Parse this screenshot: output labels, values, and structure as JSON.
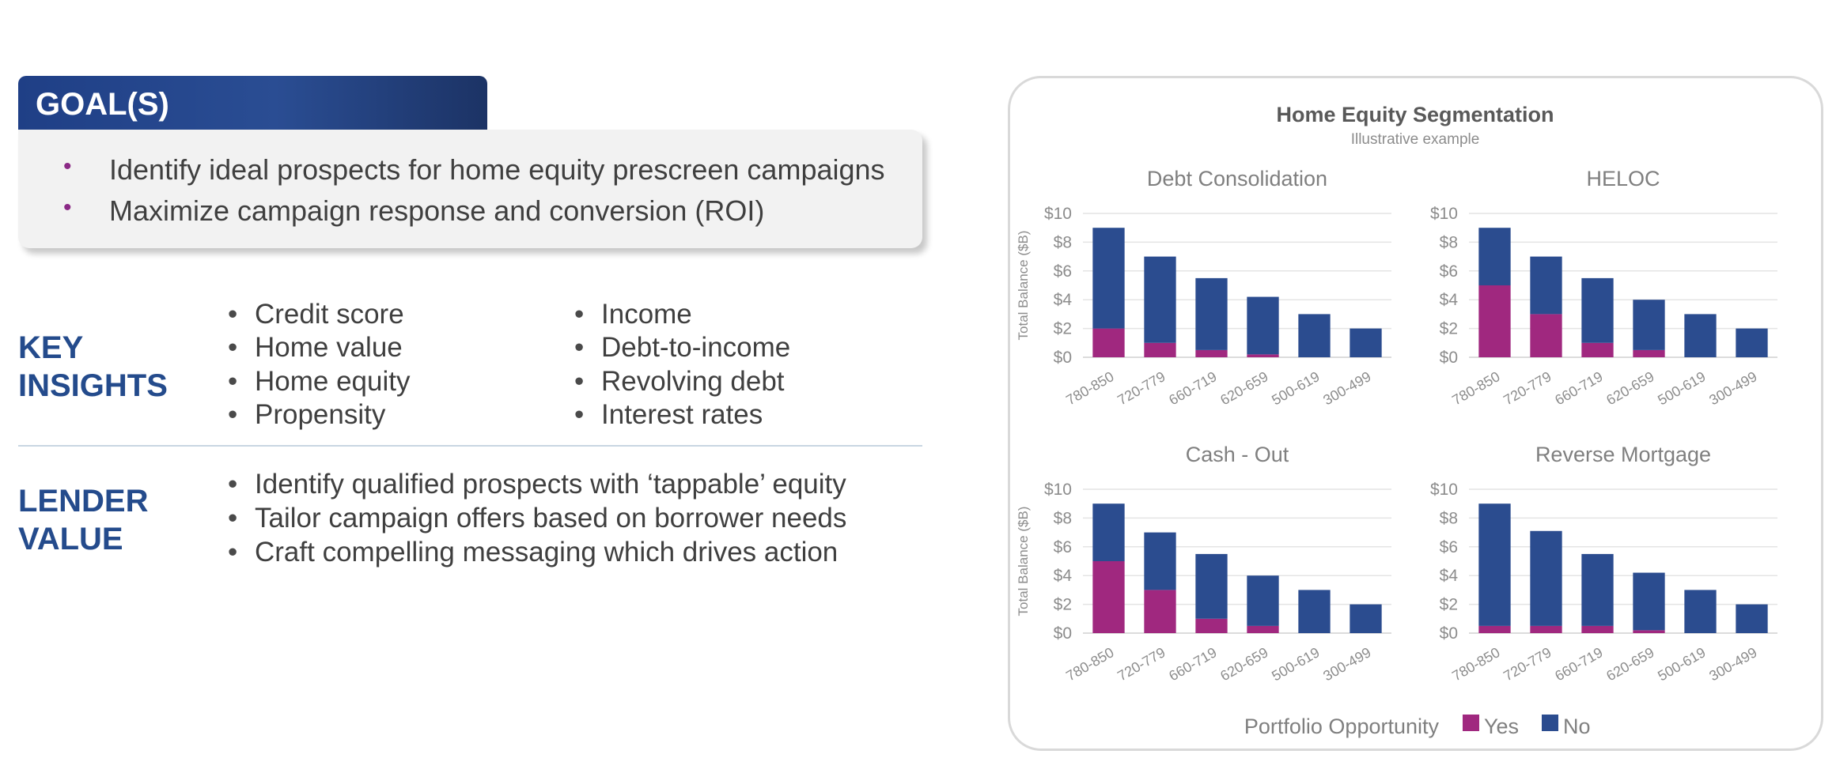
{
  "goals": {
    "header": "GOAL(S)",
    "items": [
      "Identify ideal prospects for home equity prescreen campaigns",
      "Maximize campaign response and conversion (ROI)"
    ]
  },
  "key_insights": {
    "title_line1": "KEY",
    "title_line2": "INSIGHTS",
    "col1": [
      "Credit score",
      "Home value",
      "Home equity",
      "Propensity"
    ],
    "col2": [
      "Income",
      "Debt-to-income",
      "Revolving debt",
      "Interest rates"
    ]
  },
  "lender_value": {
    "title_line1": "LENDER",
    "title_line2": "VALUE",
    "items": [
      "Identify qualified prospects with ‘tappable’ equity",
      "Tailor campaign offers based on borrower needs",
      "Craft compelling messaging which drives action"
    ]
  },
  "colors": {
    "yes": "#a0287f",
    "no": "#2b4c8f",
    "accent": "#244b8c",
    "bullet": "#8b2a86"
  },
  "chart_panel": {
    "title": "Home Equity Segmentation",
    "subtitle": "Illustrative example",
    "legend_title": "Portfolio Opportunity"
  },
  "chart_data": [
    {
      "type": "bar",
      "stacked": true,
      "title": "Debt Consolidation",
      "ylabel": "Total Balance ($B)",
      "ylim": [
        0,
        10
      ],
      "yticks": [
        "$10",
        "$8",
        "$6",
        "$4",
        "$2",
        "$0"
      ],
      "categories": [
        "780-850",
        "720-779",
        "660-719",
        "620-659",
        "500-619",
        "300-499"
      ],
      "series": [
        {
          "name": "Yes",
          "values": [
            2,
            1,
            0.5,
            0.2,
            0,
            0
          ]
        },
        {
          "name": "No",
          "values": [
            7,
            6,
            5,
            4,
            3,
            2
          ]
        }
      ]
    },
    {
      "type": "bar",
      "stacked": true,
      "title": "HELOC",
      "ylabel": "",
      "ylim": [
        0,
        10
      ],
      "yticks": [
        "$10",
        "$8",
        "$6",
        "$4",
        "$2",
        "$0"
      ],
      "categories": [
        "780-850",
        "720-779",
        "660-719",
        "620-659",
        "500-619",
        "300-499"
      ],
      "series": [
        {
          "name": "Yes",
          "values": [
            5,
            3,
            1,
            0.5,
            0,
            0
          ]
        },
        {
          "name": "No",
          "values": [
            4,
            4,
            4.5,
            3.5,
            3,
            2
          ]
        }
      ]
    },
    {
      "type": "bar",
      "stacked": true,
      "title": "Cash - Out",
      "ylabel": "Total Balance ($B)",
      "ylim": [
        0,
        10
      ],
      "yticks": [
        "$10",
        "$8",
        "$6",
        "$4",
        "$2",
        "$0"
      ],
      "categories": [
        "780-850",
        "720-779",
        "660-719",
        "620-659",
        "500-619",
        "300-499"
      ],
      "series": [
        {
          "name": "Yes",
          "values": [
            5,
            3,
            1,
            0.5,
            0,
            0
          ]
        },
        {
          "name": "No",
          "values": [
            4,
            4,
            4.5,
            3.5,
            3,
            2
          ]
        }
      ]
    },
    {
      "type": "bar",
      "stacked": true,
      "title": "Reverse Mortgage",
      "ylabel": "",
      "ylim": [
        0,
        10
      ],
      "yticks": [
        "$10",
        "$8",
        "$6",
        "$4",
        "$2",
        "$0"
      ],
      "categories": [
        "780-850",
        "720-779",
        "660-719",
        "620-659",
        "500-619",
        "300-499"
      ],
      "series": [
        {
          "name": "Yes",
          "values": [
            0.5,
            0.5,
            0.5,
            0.2,
            0,
            0
          ]
        },
        {
          "name": "No",
          "values": [
            8.5,
            6.6,
            5,
            4,
            3,
            2
          ]
        }
      ]
    }
  ]
}
